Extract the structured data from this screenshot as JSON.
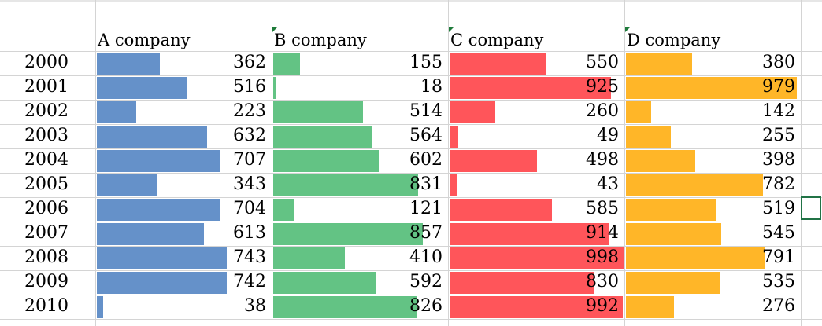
{
  "chart_data": {
    "type": "table",
    "style": "data-bars",
    "categories": [
      "2000",
      "2001",
      "2002",
      "2003",
      "2004",
      "2005",
      "2006",
      "2007",
      "2008",
      "2009",
      "2010"
    ],
    "series": [
      {
        "name": "A company",
        "color": "#6591c9",
        "values": [
          362,
          516,
          223,
          632,
          707,
          343,
          704,
          613,
          743,
          742,
          38
        ]
      },
      {
        "name": "B company",
        "color": "#63c384",
        "values": [
          155,
          18,
          514,
          564,
          602,
          831,
          121,
          857,
          410,
          592,
          826
        ]
      },
      {
        "name": "C company",
        "color": "#ff555a",
        "values": [
          550,
          925,
          260,
          49,
          498,
          43,
          585,
          914,
          998,
          830,
          992
        ]
      },
      {
        "name": "D company",
        "color": "#ffb628",
        "values": [
          380,
          979,
          142,
          255,
          398,
          782,
          519,
          545,
          791,
          535,
          276
        ]
      }
    ],
    "grid": true
  }
}
